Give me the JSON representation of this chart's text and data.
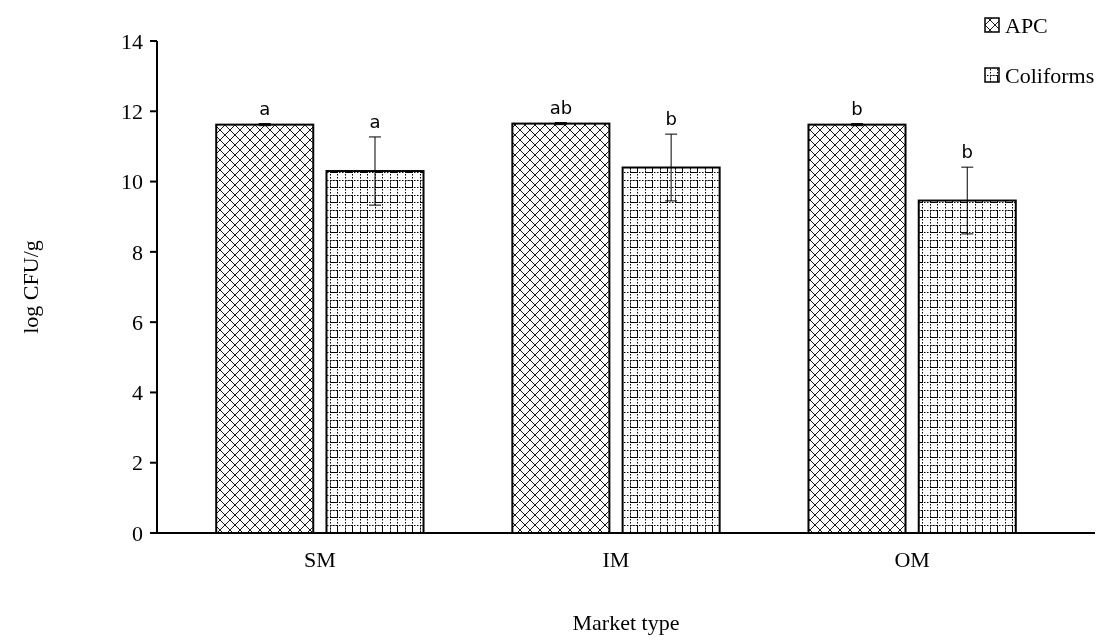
{
  "chart_data": {
    "type": "bar",
    "xlabel": "Market type",
    "ylabel": "log CFU/g",
    "categories": [
      "SM",
      "IM",
      "OM"
    ],
    "ylim": [
      0,
      14
    ],
    "yticks": [
      0,
      2,
      4,
      6,
      8,
      10,
      12,
      14
    ],
    "legend": "top right",
    "grid": false,
    "series": [
      {
        "name": "APC",
        "color": "#000000",
        "values": [
          11.62,
          11.65,
          11.62
        ],
        "errors": [
          0.03,
          0.03,
          0.03
        ],
        "value_labels": [
          "a",
          "ab",
          "b"
        ]
      },
      {
        "name": "Coliforms",
        "color": "#000000",
        "values": [
          10.3,
          10.4,
          9.46
        ],
        "errors": [
          0.97,
          0.95,
          0.95
        ],
        "value_labels": [
          "a",
          "b",
          "b"
        ]
      }
    ]
  }
}
